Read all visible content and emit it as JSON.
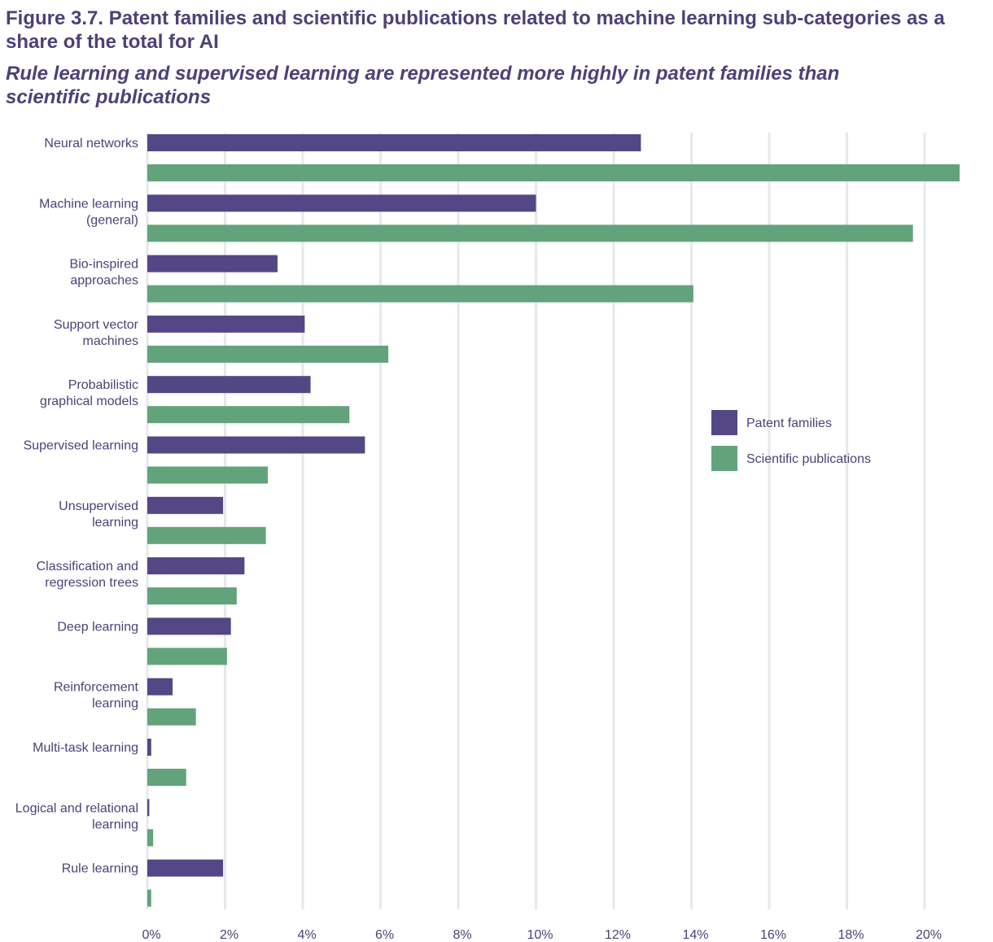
{
  "header": {
    "title": "Figure 3.7. Patent families and scientific publications related to machine learning sub-categories as a share of the total for AI",
    "subtitle": "Rule learning and supervised learning are represented more highly in patent families than scientific publications"
  },
  "chart_data": {
    "type": "bar",
    "orientation": "horizontal",
    "title": "Figure 3.7. Patent families and scientific publications related to machine learning sub-categories as a share of the total for AI",
    "subtitle": "Rule learning and supervised learning are represented more highly in patent families than scientific publications",
    "xlabel": "",
    "ylabel": "",
    "xlim": [
      0,
      21
    ],
    "x_ticks": [
      0,
      2,
      4,
      6,
      8,
      10,
      12,
      14,
      16,
      18,
      20
    ],
    "x_tick_labels": [
      "0%",
      "2%",
      "4%",
      "6%",
      "8%",
      "10%",
      "12%",
      "14%",
      "16%",
      "18%",
      "20%"
    ],
    "grid": "vertical",
    "legend_position": "right-middle",
    "categories": [
      [
        "Neural networks"
      ],
      [
        "Machine learning",
        "(general)"
      ],
      [
        "Bio-inspired",
        "approaches"
      ],
      [
        "Support vector",
        "machines"
      ],
      [
        "Probabilistic",
        "graphical models"
      ],
      [
        "Supervised learning"
      ],
      [
        "Unsupervised",
        "learning"
      ],
      [
        "Classification and",
        "regression trees"
      ],
      [
        "Deep learning"
      ],
      [
        "Reinforcement",
        "learning"
      ],
      [
        "Multi-task learning"
      ],
      [
        "Logical and relational",
        "learning"
      ],
      [
        "Rule learning"
      ]
    ],
    "series": [
      {
        "name": "Patent families",
        "color": "#544785",
        "values": [
          12.7,
          10.0,
          3.35,
          4.05,
          4.2,
          5.6,
          1.95,
          2.5,
          2.15,
          0.65,
          0.1,
          0.05,
          1.95
        ]
      },
      {
        "name": "Scientific publications",
        "color": "#62a37c",
        "values": [
          20.9,
          19.7,
          14.05,
          6.2,
          5.2,
          3.1,
          3.05,
          2.3,
          2.05,
          1.25,
          1.0,
          0.15,
          0.1
        ]
      }
    ],
    "colors": {
      "grid": "#e8e8ec",
      "text": "#4e4077"
    }
  }
}
